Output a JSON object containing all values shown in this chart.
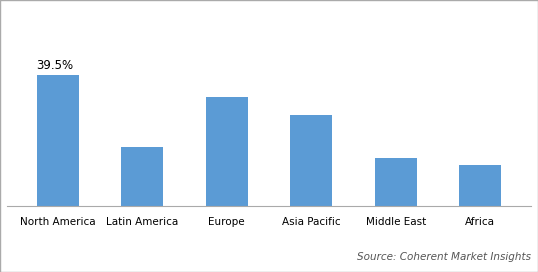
{
  "categories": [
    "North America",
    "Latin America",
    "Europe",
    "Asia Pacific",
    "Middle East",
    "Africa"
  ],
  "values": [
    39.5,
    18.0,
    33.0,
    27.5,
    14.5,
    12.5
  ],
  "bar_color": "#5B9BD5",
  "annotation_text": "39.5%",
  "annotation_index": 0,
  "annotation_fontsize": 8.5,
  "source_text": "Source: Coherent Market Insights",
  "source_fontsize": 7.5,
  "tick_fontsize": 7.5,
  "bar_width": 0.5,
  "ylim": [
    0,
    60
  ],
  "background_color": "#ffffff",
  "spine_color": "#aaaaaa",
  "border_color": "#aaaaaa",
  "figsize": [
    5.38,
    2.72
  ],
  "dpi": 100
}
